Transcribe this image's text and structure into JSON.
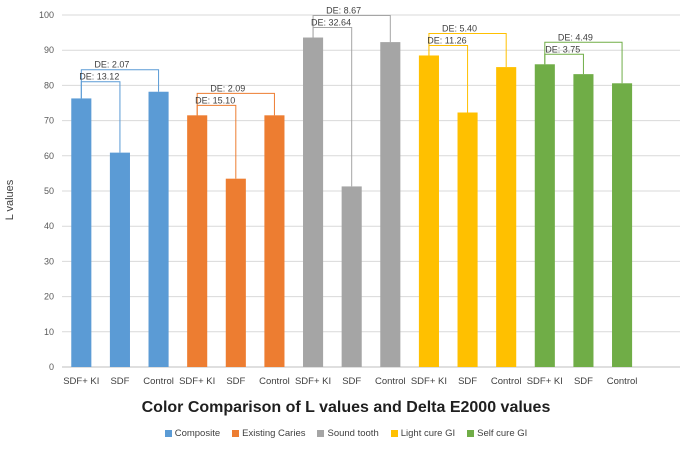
{
  "chart_data": {
    "type": "bar",
    "title": "Color Comparison of L values and Delta E2000 values",
    "xlabel": "",
    "ylabel": "L values",
    "ylim": [
      0,
      100
    ],
    "yticks": [
      0,
      10,
      20,
      30,
      40,
      50,
      60,
      70,
      80,
      90,
      100
    ],
    "grid": true,
    "legend_position": "bottom",
    "groups": [
      {
        "name": "Composite",
        "color": "#5B9BD5",
        "categories": [
          "SDF+ KI",
          "SDF",
          "Control"
        ],
        "values": [
          76.3,
          60.9,
          78.2
        ],
        "annotations": [
          {
            "label": "DE: 2.07",
            "from": 0,
            "to": 2
          },
          {
            "label": "DE: 13.12",
            "from": 0,
            "to": 1
          }
        ]
      },
      {
        "name": "Existing Caries",
        "color": "#ED7D31",
        "categories": [
          "SDF+ KI",
          "SDF",
          "Control"
        ],
        "values": [
          71.5,
          53.5,
          71.5
        ],
        "annotations": [
          {
            "label": "DE: 2.09",
            "from": 0,
            "to": 2
          },
          {
            "label": "DE: 15.10",
            "from": 0,
            "to": 1
          }
        ]
      },
      {
        "name": "Sound tooth",
        "color": "#A5A5A5",
        "categories": [
          "SDF+ KI",
          "SDF",
          "Control"
        ],
        "values": [
          93.6,
          51.3,
          92.3
        ],
        "annotations": [
          {
            "label": "DE: 8.67",
            "from": 0,
            "to": 2
          },
          {
            "label": "DE: 32.64",
            "from": 0,
            "to": 1
          }
        ]
      },
      {
        "name": "Light cure GI",
        "color": "#FFC000",
        "categories": [
          "SDF+ KI",
          "SDF",
          "Control"
        ],
        "values": [
          88.5,
          72.3,
          85.2
        ],
        "annotations": [
          {
            "label": "DE: 5.40",
            "from": 0,
            "to": 2
          },
          {
            "label": "DE: 11.26",
            "from": 0,
            "to": 1
          }
        ]
      },
      {
        "name": "Self cure GI",
        "color": "#70AD47",
        "categories": [
          "SDF+ KI",
          "SDF",
          "Control"
        ],
        "values": [
          86.0,
          83.2,
          80.6
        ],
        "annotations": [
          {
            "label": "DE: 4.49",
            "from": 0,
            "to": 2
          },
          {
            "label": "DE: 3.75",
            "from": 0,
            "to": 1
          }
        ]
      }
    ]
  }
}
